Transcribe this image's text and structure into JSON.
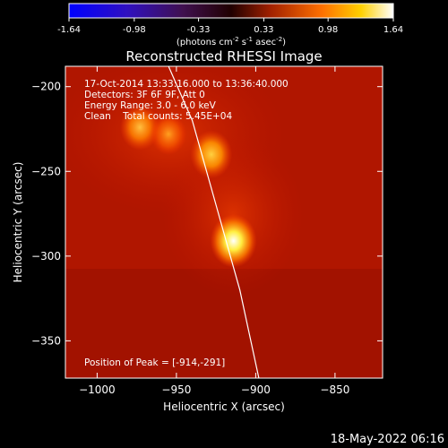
{
  "colorbar": {
    "ticks": [
      "-1.64",
      "-0.98",
      "-0.33",
      "0.33",
      "0.98",
      "1.64"
    ],
    "values": [
      -1.64,
      -0.98,
      -0.33,
      0.33,
      0.98,
      1.64
    ],
    "range": [
      -1.64,
      1.64
    ],
    "unit_main": "(photons cm",
    "unit_exp1": "-2",
    "unit_mid": " s",
    "unit_exp2": "-1",
    "unit_mid2": " asec",
    "unit_exp3": "-2",
    "unit_close": ")"
  },
  "chart_data": {
    "type": "heatmap",
    "title": "Reconstructed RHESSI Image",
    "xlabel": "Heliocentric X (arcsec)",
    "ylabel": "Heliocentric Y (arcsec)",
    "xlim": [
      -1020,
      -820
    ],
    "ylim": [
      -372,
      -188
    ],
    "x_ticks": [
      {
        "v": -1000,
        "label": "−1000"
      },
      {
        "v": -950,
        "label": "−950"
      },
      {
        "v": -900,
        "label": "−900"
      },
      {
        "v": -850,
        "label": "−850"
      }
    ],
    "y_ticks": [
      {
        "v": -200,
        "label": "−200"
      },
      {
        "v": -250,
        "label": "−250"
      },
      {
        "v": -300,
        "label": "−300"
      },
      {
        "v": -350,
        "label": "−350"
      }
    ],
    "annotations": [
      "17-Oct-2014 13:33:16.000 to 13:36:40.000",
      "Detectors: 3F 6F 9F, Att 0",
      "Energy Range: 3.0 - 6.0 keV",
      "Clean    Total counts: 5.45E+04"
    ],
    "peak_label": "Position of Peak = [-914,-291]",
    "sources": [
      {
        "x": -914,
        "y": -291,
        "intensity": 1.0
      },
      {
        "x": -928,
        "y": -240,
        "intensity": 0.78
      },
      {
        "x": -973,
        "y": -224,
        "intensity": 0.68
      },
      {
        "x": -955,
        "y": -228,
        "intensity": 0.5
      }
    ],
    "limb": {
      "x": [
        -898,
        -910,
        -925,
        -940,
        -955
      ],
      "y": [
        -372,
        -320,
        -270,
        -220,
        -188
      ]
    },
    "limb_color": "#ffffff"
  },
  "timestamp": "18-May-2022 06:16"
}
